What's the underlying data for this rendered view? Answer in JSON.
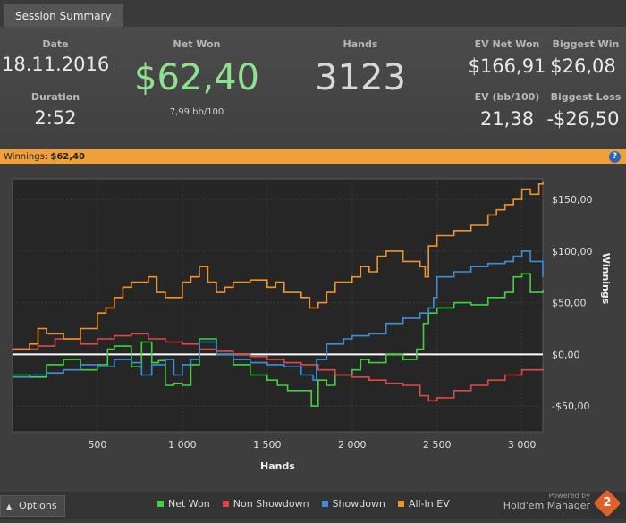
{
  "tab": {
    "label": "Session Summary"
  },
  "summary": {
    "date_label": "Date",
    "date": "18.11.2016",
    "duration_label": "Duration",
    "duration": "2:52",
    "net_won_label": "Net Won",
    "net_won": "$62,40",
    "bb100": "7,99 bb/100",
    "hands_label": "Hands",
    "hands": "3123",
    "ev_net_won_label": "EV Net Won",
    "ev_net_won": "$166,91",
    "biggest_win_label": "Biggest Win",
    "biggest_win": "$26,08",
    "ev_bb100_label": "EV (bb/100)",
    "ev_bb100": "21,38",
    "biggest_loss_label": "Biggest Loss",
    "biggest_loss": "-$26,50"
  },
  "winbar": {
    "label": "Winnings:",
    "value": "$62,40",
    "help": "?"
  },
  "chart_data": {
    "type": "line",
    "xlabel": "Hands",
    "ylabel": "Winnings",
    "xlim": [
      0,
      3123
    ],
    "ylim": [
      -75,
      170
    ],
    "x_ticks": [
      500,
      1000,
      1500,
      2000,
      2500,
      3000
    ],
    "x_tick_labels": [
      "500",
      "1 000",
      "1 500",
      "2 000",
      "2 500",
      "3 000"
    ],
    "y_ticks": [
      -50,
      0,
      50,
      100,
      150
    ],
    "y_tick_labels": [
      "-$50,00",
      "$0,00",
      "$50,00",
      "$100,00",
      "$150,00"
    ],
    "grid": true,
    "legend_position": "bottom",
    "series": [
      {
        "name": "Net Won",
        "color": "#3fd43f",
        "x": [
          0,
          100,
          200,
          300,
          400,
          500,
          560,
          600,
          700,
          760,
          820,
          860,
          900,
          950,
          1000,
          1050,
          1100,
          1200,
          1300,
          1400,
          1500,
          1560,
          1620,
          1700,
          1760,
          1800,
          1850,
          1900,
          2000,
          2050,
          2100,
          2200,
          2300,
          2380,
          2420,
          2450,
          2500,
          2600,
          2700,
          2800,
          2900,
          2950,
          3000,
          3050,
          3123
        ],
        "y": [
          -20,
          -22,
          -10,
          -5,
          -15,
          -10,
          5,
          8,
          -12,
          12,
          -8,
          -6,
          -30,
          -28,
          -30,
          -10,
          15,
          0,
          -10,
          -20,
          -25,
          -30,
          -35,
          -35,
          -50,
          -25,
          -30,
          -20,
          -15,
          -5,
          -8,
          0,
          -5,
          5,
          30,
          40,
          45,
          50,
          48,
          55,
          60,
          75,
          78,
          60,
          62.4
        ]
      },
      {
        "name": "Non Showdown",
        "color": "#e04848",
        "x": [
          0,
          150,
          250,
          400,
          500,
          600,
          700,
          800,
          900,
          1000,
          1100,
          1200,
          1300,
          1400,
          1500,
          1600,
          1700,
          1800,
          1900,
          2000,
          2100,
          2200,
          2300,
          2400,
          2450,
          2500,
          2600,
          2700,
          2800,
          2900,
          3000,
          3123
        ],
        "y": [
          5,
          8,
          15,
          10,
          15,
          18,
          20,
          15,
          12,
          10,
          5,
          3,
          0,
          -2,
          -5,
          -8,
          -10,
          -15,
          -20,
          -22,
          -25,
          -28,
          -30,
          -40,
          -45,
          -42,
          -35,
          -30,
          -25,
          -20,
          -15,
          -14
        ]
      },
      {
        "name": "Showdown",
        "color": "#3a8fd8",
        "x": [
          0,
          100,
          200,
          300,
          400,
          500,
          600,
          700,
          760,
          820,
          900,
          950,
          1000,
          1050,
          1100,
          1200,
          1300,
          1400,
          1500,
          1600,
          1700,
          1770,
          1790,
          1850,
          1950,
          2000,
          2100,
          2200,
          2300,
          2400,
          2450,
          2480,
          2500,
          2600,
          2700,
          2800,
          2900,
          2950,
          3000,
          3050,
          3123
        ],
        "y": [
          -22,
          -20,
          -18,
          -15,
          -10,
          -12,
          -5,
          -8,
          -20,
          -10,
          -5,
          -20,
          -10,
          -5,
          12,
          0,
          -5,
          -8,
          -10,
          -12,
          -20,
          -25,
          -5,
          10,
          15,
          18,
          20,
          30,
          35,
          40,
          45,
          55,
          75,
          80,
          85,
          88,
          90,
          95,
          100,
          90,
          75
        ]
      },
      {
        "name": "All-In EV",
        "color": "#f0932c",
        "x": [
          0,
          100,
          150,
          200,
          300,
          400,
          500,
          550,
          600,
          650,
          700,
          800,
          850,
          900,
          1000,
          1050,
          1100,
          1150,
          1200,
          1250,
          1300,
          1400,
          1500,
          1550,
          1600,
          1700,
          1750,
          1800,
          1850,
          1900,
          2000,
          2050,
          2100,
          2150,
          2200,
          2300,
          2400,
          2430,
          2450,
          2500,
          2600,
          2700,
          2800,
          2850,
          2900,
          2950,
          3000,
          3050,
          3100,
          3123
        ],
        "y": [
          5,
          10,
          25,
          20,
          15,
          25,
          40,
          45,
          55,
          65,
          70,
          75,
          60,
          55,
          70,
          75,
          85,
          70,
          60,
          65,
          70,
          72,
          65,
          70,
          60,
          55,
          45,
          50,
          60,
          70,
          75,
          85,
          80,
          95,
          100,
          90,
          85,
          75,
          105,
          115,
          120,
          125,
          135,
          140,
          145,
          150,
          160,
          155,
          165,
          166.9
        ]
      }
    ]
  },
  "footer": {
    "options_label": "Options",
    "powered_by": "Powered by",
    "brand": "Hold'em Manager",
    "logo_text": "2"
  }
}
